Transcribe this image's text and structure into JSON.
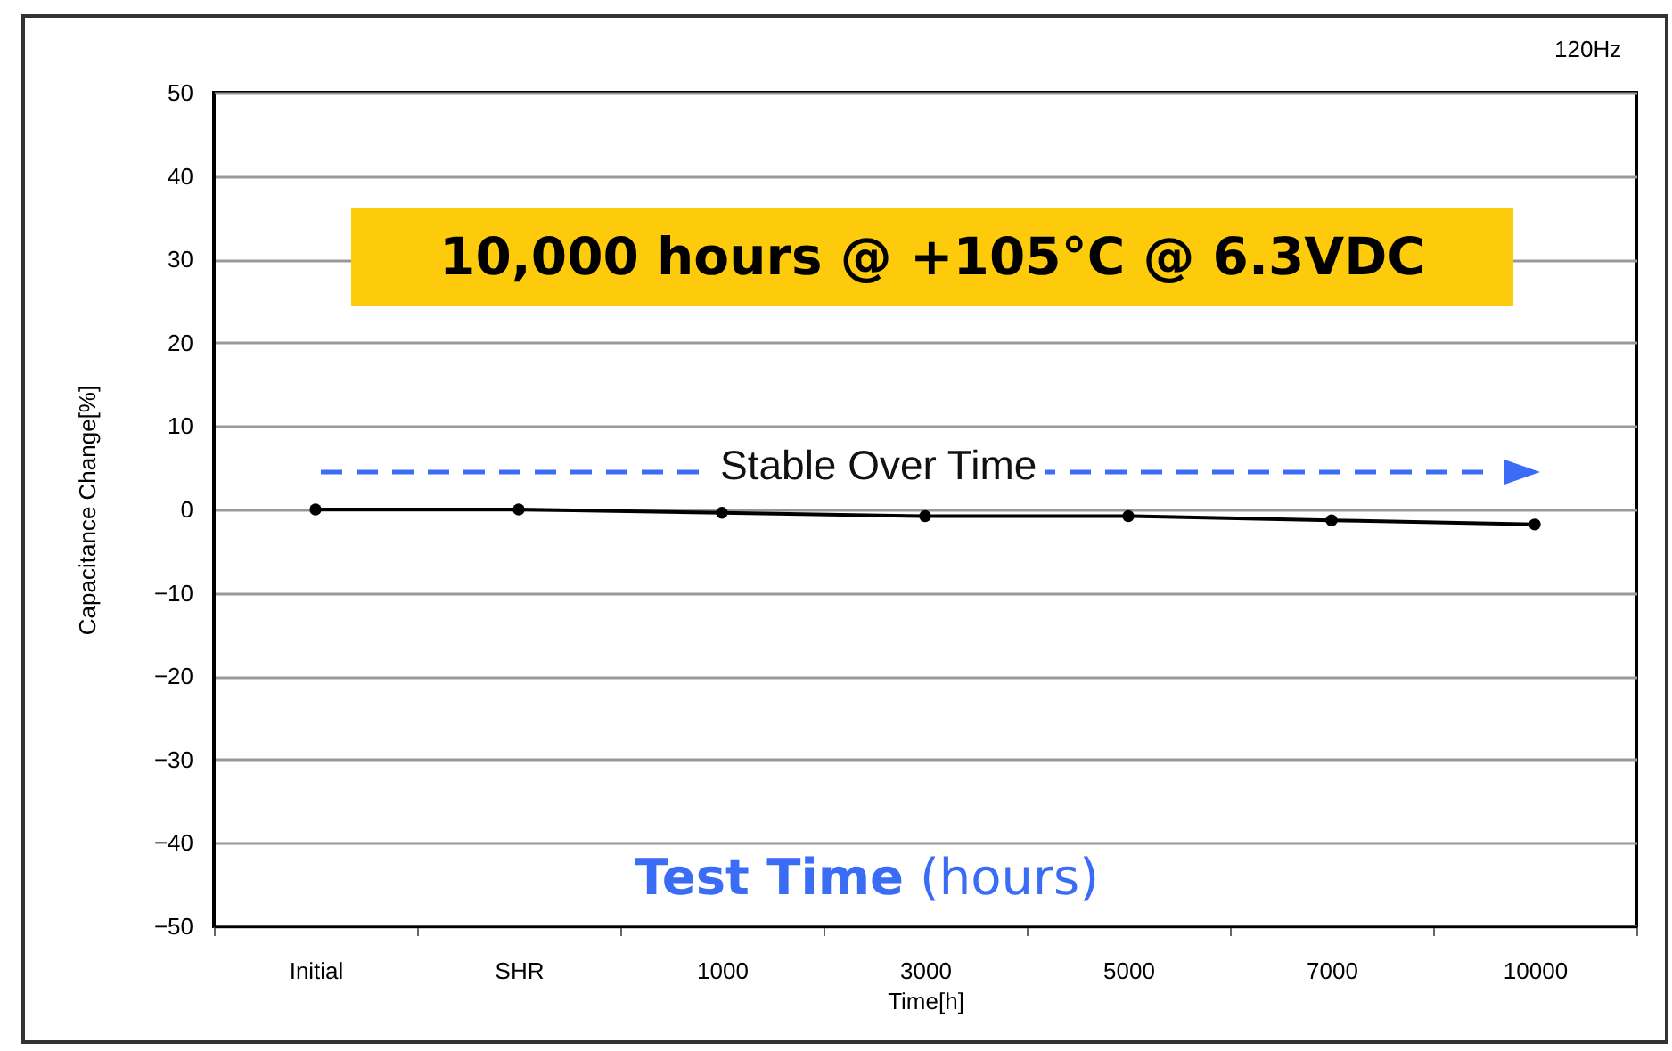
{
  "chart_data": {
    "type": "line",
    "xlabel": "Time[h]",
    "ylabel": "Capacitance Change[%]",
    "categories": [
      "Initial",
      "SHR",
      "1000",
      "3000",
      "5000",
      "7000",
      "10000"
    ],
    "series": [
      {
        "color": "#000000",
        "values": [
          0,
          0,
          -0.4,
          -0.8,
          -0.8,
          -1.3,
          -1.8
        ]
      }
    ],
    "ylim": [
      -50,
      50
    ],
    "yticks": [
      -50,
      -40,
      -30,
      -20,
      -10,
      0,
      10,
      20,
      30,
      40,
      50
    ],
    "grid": "y",
    "marker": "circle",
    "line_style": "solid",
    "legend": false,
    "annotations": [
      "120Hz",
      "10,000 hours @ +105°C @ 6.3VDC",
      "Stable Over Time",
      "Test Time (hours)"
    ]
  }
}
